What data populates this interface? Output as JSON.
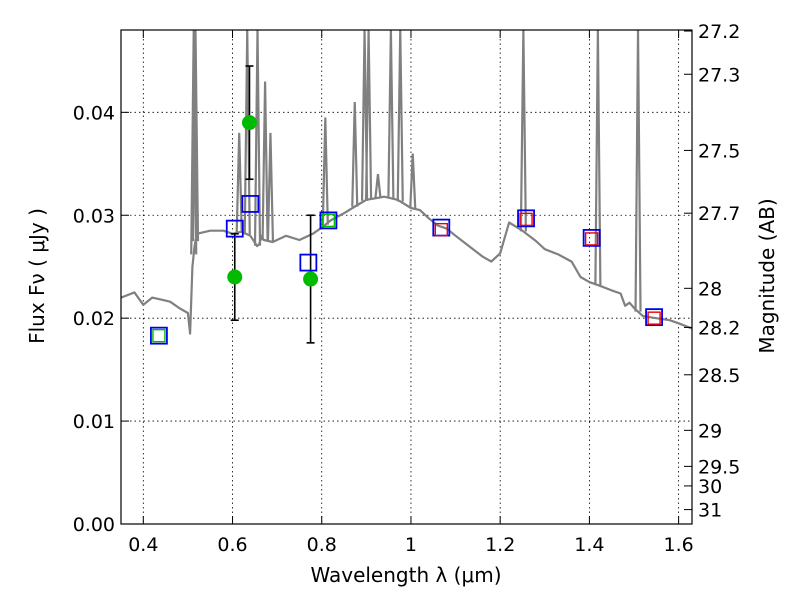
{
  "chart_data": {
    "type": "line",
    "xlabel": "Wavelength  λ (μm)",
    "ylabel": "Flux  Fν  ( μJy )",
    "y2label": "Magnitude (AB)",
    "xlim": [
      0.35,
      1.63
    ],
    "ylim": [
      0.0,
      0.048
    ],
    "grid": true,
    "x_ticks": [
      0.4,
      0.6,
      0.8,
      1.0,
      1.2,
      1.4,
      1.6
    ],
    "x_tick_labels": [
      "0.4",
      "0.6",
      "0.8",
      "1",
      "1.2",
      "1.4",
      "1.6"
    ],
    "y_ticks": [
      0.0,
      0.01,
      0.02,
      0.03,
      0.04
    ],
    "y_tick_labels": [
      "0.00",
      "0.01",
      "0.02",
      "0.03",
      "0.04"
    ],
    "y2_ticks": [
      {
        "label": "27.2",
        "flux": 0.0479
      },
      {
        "label": "27.3",
        "flux": 0.0437
      },
      {
        "label": "27.5",
        "flux": 0.0363
      },
      {
        "label": "27.7",
        "flux": 0.0302
      },
      {
        "label": "28",
        "flux": 0.0229
      },
      {
        "label": "28.2",
        "flux": 0.0191
      },
      {
        "label": "28.5",
        "flux": 0.0145
      },
      {
        "label": "29",
        "flux": 0.0091
      },
      {
        "label": "29.5",
        "flux": 0.0056
      },
      {
        "label": "30",
        "flux": 0.0037
      },
      {
        "label": "31",
        "flux": 0.0014
      }
    ],
    "colors": {
      "model": "#808080",
      "observed": "#00bb00",
      "model_band": "#0000ee",
      "red_marker": "#ee0000",
      "errorbar": "#000000"
    },
    "series": [
      {
        "kind": "model_spectrum",
        "x": [
          0.35,
          0.38,
          0.4,
          0.42,
          0.44,
          0.46,
          0.48,
          0.5,
          0.505,
          0.51,
          0.515,
          0.52,
          0.55,
          0.58,
          0.6,
          0.62,
          0.64,
          0.655,
          0.66,
          0.665,
          0.67,
          0.69,
          0.72,
          0.75,
          0.78,
          0.8,
          0.82,
          0.85,
          0.88,
          0.9,
          0.94,
          0.97,
          1.0,
          1.02,
          1.04,
          1.06,
          1.08,
          1.1,
          1.13,
          1.16,
          1.18,
          1.2,
          1.22,
          1.25,
          1.28,
          1.3,
          1.33,
          1.36,
          1.38,
          1.4,
          1.42,
          1.45,
          1.47,
          1.48,
          1.49,
          1.5,
          1.52,
          1.55,
          1.58,
          1.6,
          1.63
        ],
        "y": [
          0.022,
          0.0225,
          0.0213,
          0.022,
          0.0218,
          0.0216,
          0.021,
          0.0205,
          0.0185,
          0.025,
          0.027,
          0.0282,
          0.0285,
          0.0285,
          0.0282,
          0.0284,
          0.028,
          0.027,
          0.0272,
          0.028,
          0.0276,
          0.0274,
          0.028,
          0.0276,
          0.0282,
          0.0288,
          0.0295,
          0.0302,
          0.031,
          0.0315,
          0.0318,
          0.0315,
          0.0307,
          0.0305,
          0.0297,
          0.029,
          0.0287,
          0.028,
          0.027,
          0.026,
          0.0255,
          0.0263,
          0.0293,
          0.0285,
          0.0275,
          0.0267,
          0.0262,
          0.0255,
          0.024,
          0.0235,
          0.0232,
          0.0227,
          0.0224,
          0.0212,
          0.0215,
          0.021,
          0.0202,
          0.02,
          0.0198,
          0.0195,
          0.019
        ]
      },
      {
        "kind": "emission_lines",
        "x": [
          0.513,
          0.517,
          0.615,
          0.633,
          0.656,
          0.673,
          0.685,
          0.808,
          0.874,
          0.896,
          0.905,
          0.926,
          0.955,
          0.976,
          1.004,
          1.252,
          1.419,
          1.509
        ],
        "y": [
          0.048,
          0.048,
          0.038,
          0.048,
          0.048,
          0.043,
          0.038,
          0.0395,
          0.041,
          0.048,
          0.048,
          0.034,
          0.048,
          0.048,
          0.036,
          0.048,
          0.048,
          0.048
        ]
      },
      {
        "kind": "observed",
        "x": [
          0.605,
          0.638,
          0.775
        ],
        "y": [
          0.024,
          0.039,
          0.0238
        ],
        "err": [
          0.0042,
          0.0055,
          0.0062
        ]
      },
      {
        "kind": "model_band_flux",
        "x": [
          0.435,
          0.605,
          0.64,
          0.77,
          0.815,
          1.068,
          1.258,
          1.405,
          1.545
        ],
        "y": [
          0.0183,
          0.0287,
          0.0311,
          0.0254,
          0.0295,
          0.0288,
          0.0297,
          0.0278,
          0.0201
        ]
      },
      {
        "kind": "red_marker",
        "x": [
          1.068,
          1.258,
          1.405,
          1.545
        ],
        "y": [
          0.0286,
          0.0296,
          0.0277,
          0.02
        ]
      },
      {
        "kind": "green_marker",
        "x": [
          0.435,
          0.815
        ],
        "y": [
          0.0183,
          0.0295
        ]
      }
    ]
  }
}
